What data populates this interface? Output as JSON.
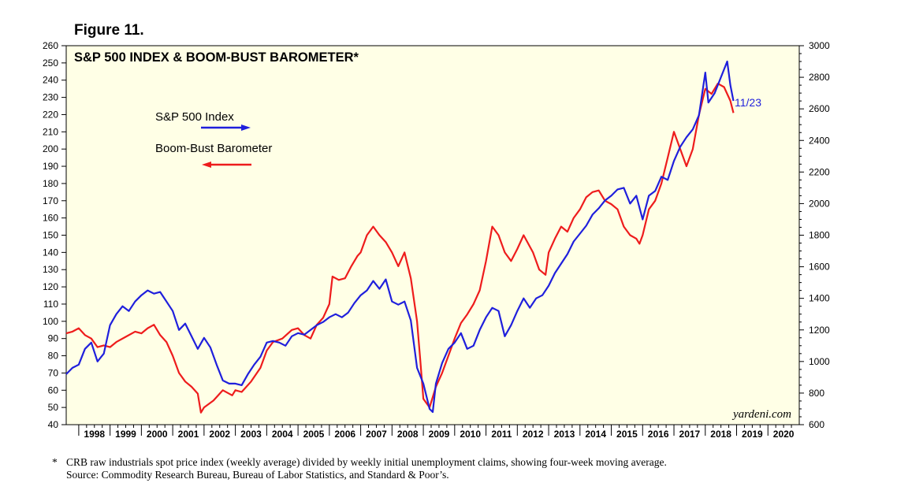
{
  "figure_label": "Figure 11.",
  "footnote": {
    "marker": "*",
    "line1": "CRB raw industrials spot price index (weekly average) divided by weekly initial unemployment claims, showing four-week moving average.",
    "line2": "Source: Commodity Research Bureau, Bureau of Labor Statistics, and Standard & Poor’s."
  },
  "chart_data": {
    "type": "line",
    "title": "S&P 500 INDEX & BOOM-BUST BAROMETER*",
    "watermark": "yardeni.com",
    "end_label": "11/23",
    "grid": false,
    "background": "#ffffe6",
    "x_tick_labels": [
      "1998",
      "1999",
      "2000",
      "2001",
      "2002",
      "2003",
      "2004",
      "2005",
      "2006",
      "2007",
      "2008",
      "2009",
      "2010",
      "2011",
      "2012",
      "2013",
      "2014",
      "2015",
      "2016",
      "2017",
      "2018",
      "2019",
      "2020"
    ],
    "x_range": [
      1997.6,
      2021.0
    ],
    "left_axis": {
      "range": [
        40,
        260
      ],
      "ticks": [
        40,
        50,
        60,
        70,
        80,
        90,
        100,
        110,
        120,
        130,
        140,
        150,
        160,
        170,
        180,
        190,
        200,
        210,
        220,
        230,
        240,
        250,
        260
      ]
    },
    "right_axis": {
      "range": [
        600,
        3000
      ],
      "ticks": [
        600,
        800,
        1000,
        1200,
        1400,
        1600,
        1800,
        2000,
        2200,
        2400,
        2600,
        2800,
        3000
      ]
    },
    "legend": [
      {
        "label": "S&P 500 Index",
        "color": "#1f1fdc",
        "arrow": "right"
      },
      {
        "label": "Boom-Bust Barometer",
        "color": "#ee1c1c",
        "arrow": "left"
      }
    ],
    "series": [
      {
        "name": "Boom-Bust Barometer",
        "axis": "left",
        "color": "#ee1c1c",
        "points": [
          [
            1997.6,
            93
          ],
          [
            1997.8,
            94
          ],
          [
            1998.0,
            96
          ],
          [
            1998.2,
            92
          ],
          [
            1998.4,
            90
          ],
          [
            1998.6,
            85
          ],
          [
            1998.8,
            86
          ],
          [
            1999.0,
            85
          ],
          [
            1999.2,
            88
          ],
          [
            1999.5,
            91
          ],
          [
            1999.8,
            94
          ],
          [
            2000.0,
            93
          ],
          [
            2000.2,
            96
          ],
          [
            2000.4,
            98
          ],
          [
            2000.6,
            92
          ],
          [
            2000.8,
            88
          ],
          [
            2001.0,
            80
          ],
          [
            2001.2,
            70
          ],
          [
            2001.4,
            65
          ],
          [
            2001.6,
            62
          ],
          [
            2001.8,
            58
          ],
          [
            2001.9,
            47
          ],
          [
            2002.0,
            50
          ],
          [
            2002.3,
            54
          ],
          [
            2002.6,
            60
          ],
          [
            2002.9,
            57
          ],
          [
            2003.0,
            60
          ],
          [
            2003.2,
            59
          ],
          [
            2003.5,
            65
          ],
          [
            2003.8,
            73
          ],
          [
            2004.0,
            83
          ],
          [
            2004.2,
            88
          ],
          [
            2004.5,
            90
          ],
          [
            2004.8,
            95
          ],
          [
            2005.0,
            96
          ],
          [
            2005.2,
            92
          ],
          [
            2005.4,
            90
          ],
          [
            2005.6,
            98
          ],
          [
            2005.8,
            102
          ],
          [
            2006.0,
            110
          ],
          [
            2006.1,
            126
          ],
          [
            2006.3,
            124
          ],
          [
            2006.5,
            125
          ],
          [
            2006.7,
            132
          ],
          [
            2006.9,
            138
          ],
          [
            2007.0,
            140
          ],
          [
            2007.2,
            150
          ],
          [
            2007.4,
            155
          ],
          [
            2007.6,
            150
          ],
          [
            2007.8,
            146
          ],
          [
            2008.0,
            140
          ],
          [
            2008.2,
            132
          ],
          [
            2008.4,
            140
          ],
          [
            2008.6,
            125
          ],
          [
            2008.8,
            100
          ],
          [
            2008.9,
            78
          ],
          [
            2009.0,
            55
          ],
          [
            2009.2,
            50
          ],
          [
            2009.4,
            62
          ],
          [
            2009.6,
            70
          ],
          [
            2009.8,
            80
          ],
          [
            2010.0,
            90
          ],
          [
            2010.2,
            99
          ],
          [
            2010.4,
            104
          ],
          [
            2010.6,
            110
          ],
          [
            2010.8,
            118
          ],
          [
            2011.0,
            135
          ],
          [
            2011.2,
            155
          ],
          [
            2011.4,
            150
          ],
          [
            2011.6,
            140
          ],
          [
            2011.8,
            135
          ],
          [
            2012.0,
            142
          ],
          [
            2012.2,
            150
          ],
          [
            2012.5,
            140
          ],
          [
            2012.7,
            130
          ],
          [
            2012.9,
            127
          ],
          [
            2013.0,
            140
          ],
          [
            2013.2,
            148
          ],
          [
            2013.4,
            155
          ],
          [
            2013.6,
            152
          ],
          [
            2013.8,
            160
          ],
          [
            2014.0,
            165
          ],
          [
            2014.2,
            172
          ],
          [
            2014.4,
            175
          ],
          [
            2014.6,
            176
          ],
          [
            2014.8,
            170
          ],
          [
            2015.0,
            168
          ],
          [
            2015.2,
            165
          ],
          [
            2015.4,
            155
          ],
          [
            2015.6,
            150
          ],
          [
            2015.8,
            148
          ],
          [
            2015.9,
            145
          ],
          [
            2016.0,
            150
          ],
          [
            2016.2,
            165
          ],
          [
            2016.4,
            170
          ],
          [
            2016.6,
            180
          ],
          [
            2016.8,
            195
          ],
          [
            2017.0,
            210
          ],
          [
            2017.2,
            200
          ],
          [
            2017.4,
            190
          ],
          [
            2017.6,
            200
          ],
          [
            2017.8,
            220
          ],
          [
            2018.0,
            235
          ],
          [
            2018.2,
            232
          ],
          [
            2018.4,
            238
          ],
          [
            2018.6,
            236
          ],
          [
            2018.8,
            228
          ],
          [
            2018.9,
            221
          ]
        ]
      },
      {
        "name": "S&P 500 Index",
        "axis": "right",
        "color": "#1f1fdc",
        "points": [
          [
            1997.6,
            920
          ],
          [
            1997.8,
            960
          ],
          [
            1998.0,
            980
          ],
          [
            1998.2,
            1080
          ],
          [
            1998.4,
            1120
          ],
          [
            1998.6,
            1000
          ],
          [
            1998.8,
            1050
          ],
          [
            1999.0,
            1230
          ],
          [
            1999.2,
            1300
          ],
          [
            1999.4,
            1350
          ],
          [
            1999.6,
            1320
          ],
          [
            1999.8,
            1380
          ],
          [
            2000.0,
            1420
          ],
          [
            2000.2,
            1450
          ],
          [
            2000.4,
            1430
          ],
          [
            2000.6,
            1440
          ],
          [
            2000.8,
            1380
          ],
          [
            2001.0,
            1320
          ],
          [
            2001.2,
            1200
          ],
          [
            2001.4,
            1240
          ],
          [
            2001.6,
            1160
          ],
          [
            2001.8,
            1080
          ],
          [
            2002.0,
            1150
          ],
          [
            2002.2,
            1090
          ],
          [
            2002.4,
            980
          ],
          [
            2002.6,
            880
          ],
          [
            2002.8,
            860
          ],
          [
            2003.0,
            860
          ],
          [
            2003.2,
            850
          ],
          [
            2003.4,
            920
          ],
          [
            2003.6,
            980
          ],
          [
            2003.8,
            1030
          ],
          [
            2004.0,
            1120
          ],
          [
            2004.2,
            1130
          ],
          [
            2004.4,
            1120
          ],
          [
            2004.6,
            1100
          ],
          [
            2004.8,
            1160
          ],
          [
            2005.0,
            1180
          ],
          [
            2005.2,
            1170
          ],
          [
            2005.4,
            1200
          ],
          [
            2005.6,
            1230
          ],
          [
            2005.8,
            1250
          ],
          [
            2006.0,
            1280
          ],
          [
            2006.2,
            1300
          ],
          [
            2006.4,
            1280
          ],
          [
            2006.6,
            1310
          ],
          [
            2006.8,
            1370
          ],
          [
            2007.0,
            1420
          ],
          [
            2007.2,
            1450
          ],
          [
            2007.4,
            1510
          ],
          [
            2007.6,
            1460
          ],
          [
            2007.8,
            1520
          ],
          [
            2008.0,
            1380
          ],
          [
            2008.2,
            1360
          ],
          [
            2008.4,
            1380
          ],
          [
            2008.6,
            1260
          ],
          [
            2008.8,
            960
          ],
          [
            2009.0,
            860
          ],
          [
            2009.2,
            700
          ],
          [
            2009.3,
            680
          ],
          [
            2009.4,
            860
          ],
          [
            2009.6,
            990
          ],
          [
            2009.8,
            1080
          ],
          [
            2010.0,
            1120
          ],
          [
            2010.2,
            1180
          ],
          [
            2010.4,
            1080
          ],
          [
            2010.6,
            1100
          ],
          [
            2010.8,
            1200
          ],
          [
            2011.0,
            1280
          ],
          [
            2011.2,
            1340
          ],
          [
            2011.4,
            1320
          ],
          [
            2011.6,
            1160
          ],
          [
            2011.8,
            1230
          ],
          [
            2012.0,
            1320
          ],
          [
            2012.2,
            1400
          ],
          [
            2012.4,
            1340
          ],
          [
            2012.6,
            1400
          ],
          [
            2012.8,
            1420
          ],
          [
            2013.0,
            1480
          ],
          [
            2013.2,
            1560
          ],
          [
            2013.4,
            1620
          ],
          [
            2013.6,
            1680
          ],
          [
            2013.8,
            1760
          ],
          [
            2014.0,
            1810
          ],
          [
            2014.2,
            1860
          ],
          [
            2014.4,
            1930
          ],
          [
            2014.6,
            1970
          ],
          [
            2014.8,
            2020
          ],
          [
            2015.0,
            2050
          ],
          [
            2015.2,
            2090
          ],
          [
            2015.4,
            2100
          ],
          [
            2015.6,
            2000
          ],
          [
            2015.8,
            2050
          ],
          [
            2016.0,
            1900
          ],
          [
            2016.2,
            2050
          ],
          [
            2016.4,
            2080
          ],
          [
            2016.6,
            2170
          ],
          [
            2016.8,
            2150
          ],
          [
            2017.0,
            2270
          ],
          [
            2017.2,
            2360
          ],
          [
            2017.4,
            2420
          ],
          [
            2017.6,
            2470
          ],
          [
            2017.8,
            2560
          ],
          [
            2018.0,
            2830
          ],
          [
            2018.1,
            2640
          ],
          [
            2018.3,
            2700
          ],
          [
            2018.5,
            2800
          ],
          [
            2018.7,
            2900
          ],
          [
            2018.8,
            2750
          ],
          [
            2018.9,
            2650
          ]
        ]
      }
    ]
  }
}
